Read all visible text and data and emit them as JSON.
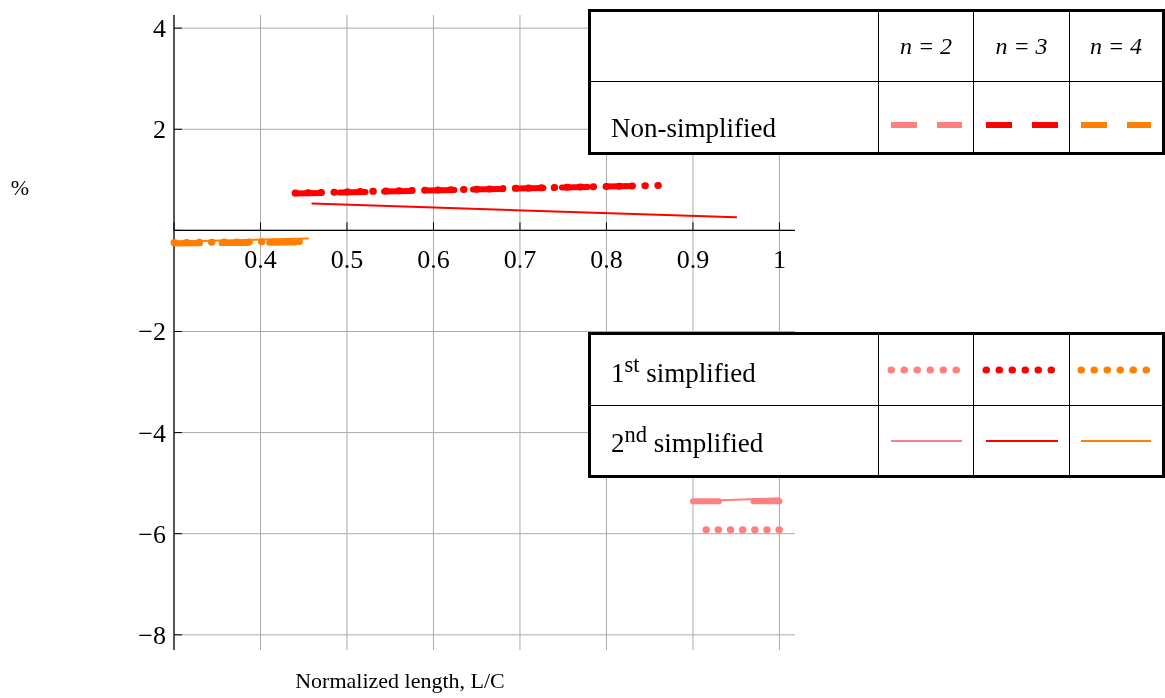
{
  "chart_data": {
    "type": "line",
    "xlabel": "Normalized length, L/C",
    "ylabel": "%",
    "xlim": [
      0.3,
      1.018
    ],
    "ylim": [
      -8.3,
      4.26
    ],
    "xticks": [
      {
        "value": 0.3,
        "label": null
      },
      0.4,
      0.5,
      0.6,
      0.7,
      0.8,
      0.9,
      1.0
    ],
    "yticks": [
      -8,
      -6,
      -4,
      -2,
      {
        "value": 0,
        "label": null
      },
      2,
      4
    ],
    "grid": true,
    "marker": "none",
    "annotations": [
      "n = 2",
      "n = 3",
      "n = 4",
      "Non-simplified",
      "1$^{st}$ simplified",
      "2$^{nd}$ simplified"
    ],
    "series": [
      {
        "color": "#ff8080",
        "line_style": "dashed",
        "x": [
          0.9,
          1.0
        ],
        "values": [
          -5.36,
          -5.36
        ]
      },
      {
        "color": "#ff0000",
        "line_style": "dashed",
        "x": [
          0.44,
          0.83
        ],
        "values": [
          0.73,
          0.88
        ]
      },
      {
        "color": "#ff8000",
        "line_style": "dashed",
        "x": [
          0.3,
          0.44
        ],
        "values": [
          -0.26,
          -0.24
        ]
      },
      {
        "color": "#ff8080",
        "line_style": "dotted",
        "x": [
          0.915,
          1.0
        ],
        "values": [
          -5.92,
          -5.92
        ]
      },
      {
        "color": "#ff0000",
        "line_style": "dotted",
        "x": [
          0.44,
          0.86
        ],
        "values": [
          0.74,
          0.89
        ]
      },
      {
        "color": "#ff8000",
        "line_style": "dotted",
        "x": [
          0.3,
          0.445
        ],
        "values": [
          -0.24,
          -0.22
        ]
      },
      {
        "color": "#ff8080",
        "line_style": "solid",
        "x": [
          0.9,
          1.0
        ],
        "values": [
          -5.36,
          -5.3
        ]
      },
      {
        "color": "#ff0000",
        "line_style": "solid",
        "x": [
          0.46,
          0.95
        ],
        "values": [
          0.53,
          0.26
        ]
      },
      {
        "color": "#ff8000",
        "line_style": "solid",
        "x": [
          0.3,
          0.455
        ],
        "values": [
          -0.22,
          -0.16
        ]
      }
    ]
  }
}
